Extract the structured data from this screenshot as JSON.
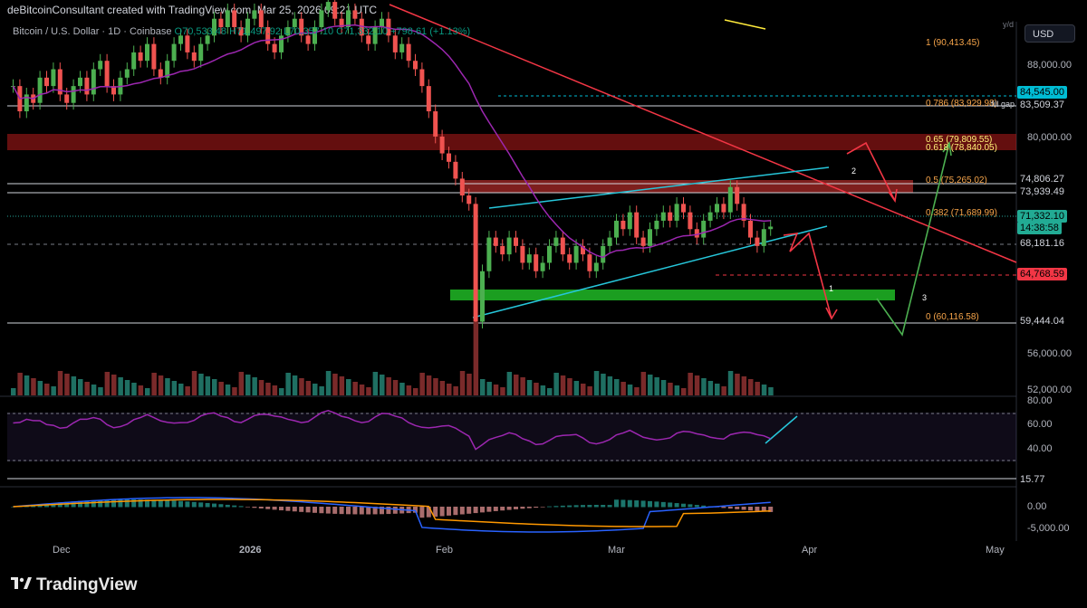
{
  "header": {
    "attribution": "deBitcoinConsultant created with TradingView.com, Mar 25, 2026 09:21 UTC"
  },
  "legend": {
    "symbol": "Bitcoin / U.S. Dollar · 1D · Coinbase",
    "open": "O70,533.48",
    "high": "H71,497.92",
    "low": "L70,357.10",
    "close": "C71,332.10",
    "change": "+798.61 (+1.13%)"
  },
  "scale": {
    "currency": "USD",
    "scale_mode": "y/d",
    "price_ticks": [
      "88,000.00",
      "80,000.00",
      "56,000.00",
      "52,000.00"
    ],
    "rsi_ticks": [
      "80.00",
      "60.00",
      "40.00"
    ],
    "macd_ticks": [
      "0.00",
      "-5,000.00"
    ]
  },
  "price_labels": [
    {
      "text": "84,545.00",
      "bg": "#00bcd4",
      "fg": "#000000"
    },
    {
      "text": "83,509.37",
      "bg": "#000000",
      "fg": "#d1d4dc"
    },
    {
      "text": "74,806.27",
      "bg": "#000000",
      "fg": "#d1d4dc"
    },
    {
      "text": "73,939.49",
      "bg": "#000000",
      "fg": "#d1d4dc"
    },
    {
      "text": "71,332.10",
      "bg": "#22ab94",
      "fg": "#000000"
    },
    {
      "text": "14:38:58",
      "bg": "#22ab94",
      "fg": "#000000"
    },
    {
      "text": "68,181.16",
      "bg": "#000000",
      "fg": "#d1d4dc"
    },
    {
      "text": "64,768.59",
      "bg": "#f23645",
      "fg": "#000000"
    },
    {
      "text": "59,444.04",
      "bg": "#000000",
      "fg": "#d1d4dc"
    },
    {
      "text": "15.77",
      "bg": "#000000",
      "fg": "#d1d4dc"
    }
  ],
  "fib_levels": [
    {
      "text": "1 (90,413.45)",
      "color": "#f7a54a"
    },
    {
      "text": "0.786 (83,929.98)",
      "color": "#f7a54a"
    },
    {
      "text": "0.65 (79,809.55)",
      "color": "#fff176"
    },
    {
      "text": "0.618 (78,840.05)",
      "color": "#fff176"
    },
    {
      "text": "0.5 (75,265.02)",
      "color": "#f7a54a"
    },
    {
      "text": "0.382 (71,689.99)",
      "color": "#f7a54a"
    },
    {
      "text": "0 (60,116.58)",
      "color": "#f7a54a"
    }
  ],
  "annotations": {
    "fill_gap": "fill gap",
    "path_1": "1",
    "path_2": "2",
    "path_3": "3"
  },
  "time_axis": [
    "Dec",
    "2026",
    "Feb",
    "Mar",
    "Apr",
    "May"
  ],
  "footer": {
    "brand": "TradingView"
  },
  "colors": {
    "bull": "#26a69a",
    "bear": "#ef5350",
    "bull_bright": "#4caf50",
    "resistance_zone": "#b71c1c",
    "support_zone": "#1b9e20",
    "channel": "#26c6da",
    "trendline": "#f23645",
    "ma": "#9c27b0",
    "rsi": "#9c27b0"
  }
}
